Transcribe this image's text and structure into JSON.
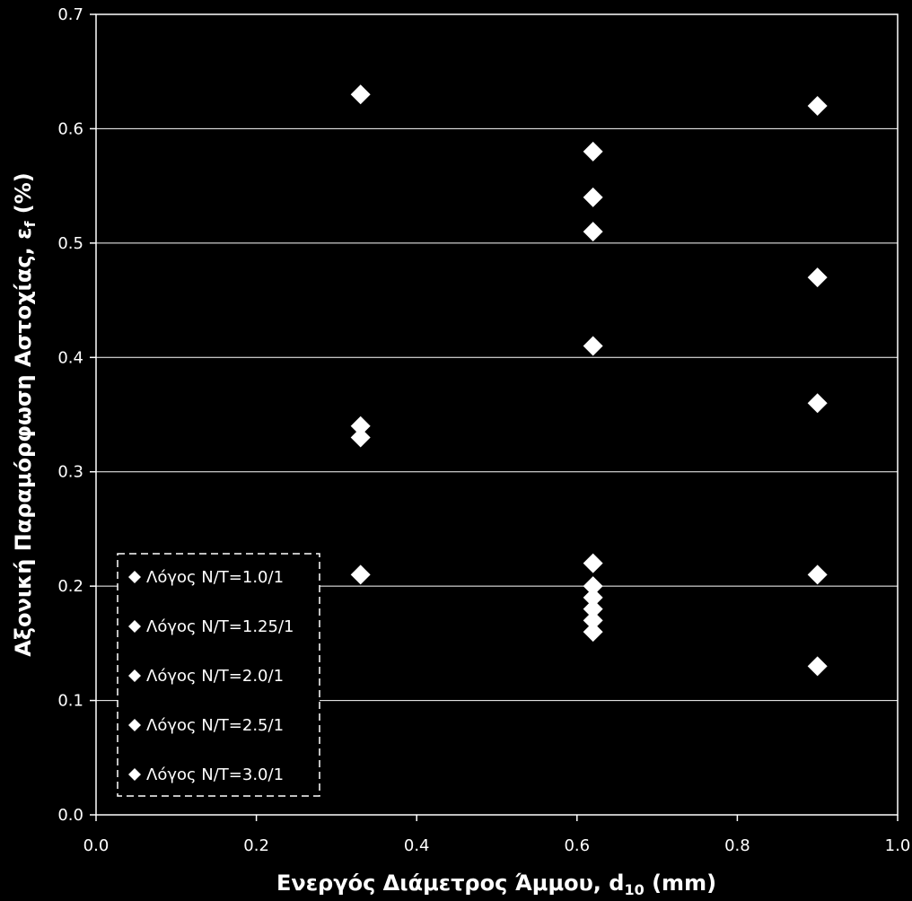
{
  "chart_data": {
    "type": "scatter",
    "title": "",
    "xlabel": {
      "main": "Ενεργός   Διάμετρος  Άμμου, d",
      "sub": "10",
      "tail": " (mm)"
    },
    "ylabel": {
      "main": "Αξονική  Παραμόρφωση  Αστοχίας,  ε",
      "sub": "f",
      "tail": " (%)"
    },
    "xlim": [
      0.0,
      1.0
    ],
    "ylim": [
      0.0,
      0.7
    ],
    "x_ticks": [
      "0.0",
      "0.2",
      "0.4",
      "0.6",
      "0.8",
      "1.0"
    ],
    "y_ticks": [
      "0.0",
      "0.1",
      "0.2",
      "0.3",
      "0.4",
      "0.5",
      "0.6",
      "0.7"
    ],
    "grid": "horizontal",
    "legend_position": "bottom-left",
    "marker": "diamond",
    "colors": {
      "background": "#000000",
      "foreground": "#ffffff",
      "marker": "#ffffff"
    },
    "series": [
      {
        "name": "Λόγος Ν/Τ=1.0/1",
        "x": [
          0.33,
          0.62,
          0.9
        ],
        "y": [
          0.63,
          0.58,
          0.62
        ]
      },
      {
        "name": "Λόγος Ν/Τ=1.25/1",
        "x": [
          0.62
        ],
        "y": [
          0.54
        ]
      },
      {
        "name": "Λόγος Ν/Τ=2.0/1",
        "x": [
          0.33,
          0.62,
          0.9
        ],
        "y": [
          0.34,
          0.51,
          0.47
        ]
      },
      {
        "name": "Λόγος Ν/Τ=2.5/1",
        "x": [
          0.33,
          0.62,
          0.62,
          0.62,
          0.62,
          0.9,
          0.9
        ],
        "y": [
          0.33,
          0.41,
          0.22,
          0.2,
          0.19,
          0.36,
          0.21
        ]
      },
      {
        "name": "Λόγος Ν/Τ=3.0/1",
        "x": [
          0.33,
          0.62,
          0.62,
          0.62,
          0.9
        ],
        "y": [
          0.21,
          0.18,
          0.17,
          0.16,
          0.13
        ]
      }
    ]
  }
}
